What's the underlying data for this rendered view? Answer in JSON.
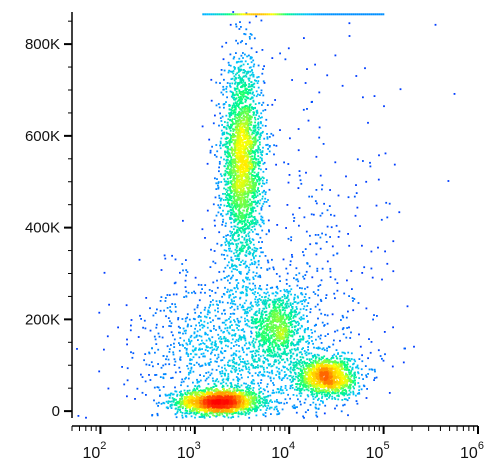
{
  "chart_data": {
    "type": "scatter",
    "title": "",
    "xlabel": "",
    "ylabel": "",
    "x_scale": "log",
    "y_scale": "linear",
    "xlim": [
      50,
      1000000
    ],
    "ylim": [
      -15000,
      870000
    ],
    "grid": false,
    "legend": "none",
    "density_colormap": [
      "#0000ff",
      "#00bfff",
      "#00ff80",
      "#ffff00",
      "#ff7f00",
      "#ff0000"
    ],
    "x_ticks": [
      {
        "value": 100,
        "base": "10",
        "exp": "2"
      },
      {
        "value": 1000,
        "base": "10",
        "exp": "3"
      },
      {
        "value": 10000,
        "base": "10",
        "exp": "4"
      },
      {
        "value": 100000,
        "base": "10",
        "exp": "5"
      },
      {
        "value": 1000000,
        "base": "10",
        "exp": "6"
      }
    ],
    "y_ticks": [
      {
        "value": 0,
        "label": "0"
      },
      {
        "value": 200000,
        "label": "200K"
      },
      {
        "value": 400000,
        "label": "400K"
      },
      {
        "value": 600000,
        "label": "600K"
      },
      {
        "value": 800000,
        "label": "800K"
      }
    ],
    "populations": [
      {
        "x_center": 1800,
        "y_center": 20000,
        "x_spread_log10": 0.22,
        "y_spread": 14000,
        "count": 1800
      },
      {
        "x_center": 3200,
        "y_center": 540000,
        "x_spread_log10": 0.11,
        "y_spread": 110000,
        "count": 2600
      },
      {
        "x_center": 7500,
        "y_center": 185000,
        "x_spread_log10": 0.13,
        "y_spread": 38000,
        "count": 700
      },
      {
        "x_center": 25000,
        "y_center": 75000,
        "x_spread_log10": 0.16,
        "y_spread": 22000,
        "count": 1300
      },
      {
        "x_center": 3500,
        "y_center": 130000,
        "x_spread_log10": 0.55,
        "y_spread": 90000,
        "count": 1600
      },
      {
        "x_center": 20000,
        "y_center": 350000,
        "x_spread_log10": 0.45,
        "y_spread": 200000,
        "count": 260
      }
    ],
    "saturated_band": {
      "x_start": 1200,
      "x_end": 100000,
      "y": 865000
    }
  }
}
